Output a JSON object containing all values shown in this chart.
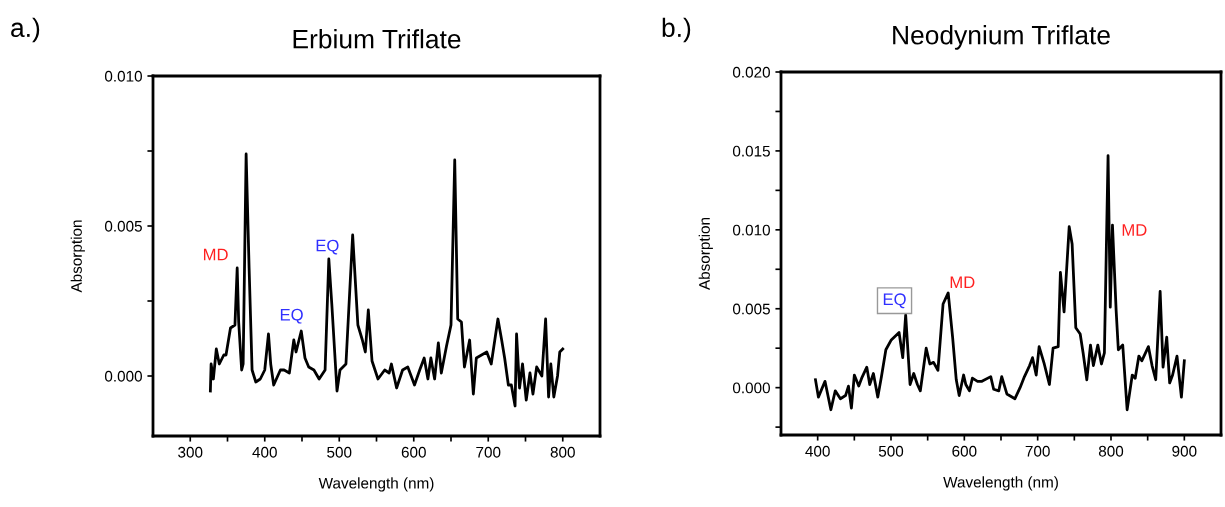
{
  "chart_data": [
    {
      "type": "line",
      "title": "Erbium Triflate",
      "xlabel": "Wavelength (nm)",
      "ylabel": "Absorption",
      "annotations": [
        "a.)",
        "MD",
        "EQ",
        "EQ"
      ],
      "xlim": [
        250,
        850
      ],
      "xticks": [
        300,
        {
          "value": 350,
          "label": null
        },
        400,
        {
          "value": 450,
          "label": null
        },
        500,
        {
          "value": 550,
          "label": null
        },
        600,
        {
          "value": 650,
          "label": null
        },
        700,
        {
          "value": 750,
          "label": null
        },
        800
      ],
      "ylim": [
        -0.002,
        0.01
      ],
      "yticks": [
        {
          "value": 0,
          "label": "0.000"
        },
        {
          "value": 0.0025,
          "label": null
        },
        {
          "value": 0.005,
          "label": "0.005"
        },
        {
          "value": 0.0075,
          "label": null
        },
        {
          "value": 0.01,
          "label": "0.010"
        }
      ],
      "grid": false,
      "legend": false,
      "marker": "none",
      "line_style": "solid",
      "series": [
        {
          "color": "#000000",
          "x": [
            327,
            328,
            331,
            335,
            339,
            345,
            348,
            354,
            360,
            363,
            365,
            369,
            371,
            375,
            379,
            383,
            388,
            394,
            400,
            405,
            408,
            412,
            421,
            426,
            433,
            439,
            442,
            449,
            454,
            459,
            466,
            473,
            481,
            486,
            490,
            497,
            501,
            509,
            518,
            525,
            531,
            535,
            539,
            544,
            552,
            561,
            567,
            570,
            577,
            585,
            592,
            601,
            608,
            614,
            619,
            623,
            628,
            633,
            637,
            644,
            650,
            655,
            659,
            664,
            668,
            675,
            680,
            684,
            691,
            698,
            704,
            713,
            718,
            722,
            727,
            731,
            736,
            738,
            742,
            746,
            751,
            756,
            760,
            765,
            772,
            777,
            781,
            784,
            788,
            793,
            796,
            800
          ],
          "values": [
            -0.0005,
            0.0004,
            -0.0001,
            0.0009,
            0.0004,
            0.0007,
            0.0007,
            0.0016,
            0.0017,
            0.0036,
            0.0018,
            0.0002,
            0.0004,
            0.0074,
            0.0036,
            0.0002,
            -0.0002,
            -0.0001,
            0.0002,
            0.0014,
            0.0004,
            -0.0003,
            0.0002,
            0.0002,
            0.0001,
            0.0012,
            0.0008,
            0.0015,
            0.0006,
            0.0003,
            0.0002,
            -0.0001,
            0.0002,
            0.0039,
            0.0024,
            -0.0005,
            0.0002,
            0.0004,
            0.0047,
            0.0017,
            0.0012,
            0.0008,
            0.0022,
            0.0005,
            -0.0001,
            0.0002,
            0.0001,
            0.0004,
            -0.0004,
            0.0002,
            0.0003,
            -0.0003,
            0.0002,
            0.0006,
            -0.0001,
            0.0006,
            -0.0001,
            0.0011,
            0.0001,
            0.001,
            0.0017,
            0.0072,
            0.0019,
            0.0018,
            0.0003,
            0.0012,
            -0.0006,
            0.0006,
            0.0007,
            0.0008,
            0.0004,
            0.0019,
            0.0012,
            0.0006,
            -0.0003,
            -0.0003,
            -0.001,
            0.0014,
            -0.0004,
            0.0004,
            -0.0008,
            0.0001,
            -0.0006,
            0.0003,
            0.0,
            0.0019,
            -0.0007,
            0.0004,
            -0.0007,
            0.0,
            0.0008,
            0.0009
          ]
        }
      ]
    },
    {
      "type": "line",
      "title": "Neodynium Triflate",
      "xlabel": "Wavelength (nm)",
      "ylabel": "Absorption",
      "annotations": [
        "b.)",
        "EQ",
        "MD",
        "MD"
      ],
      "xlim": [
        350,
        950
      ],
      "xticks": [
        400,
        {
          "value": 450,
          "label": null
        },
        500,
        {
          "value": 550,
          "label": null
        },
        600,
        {
          "value": 650,
          "label": null
        },
        700,
        {
          "value": 750,
          "label": null
        },
        800,
        {
          "value": 850,
          "label": null
        },
        900
      ],
      "ylim": [
        -0.003,
        0.02
      ],
      "yticks": [
        {
          "value": -0.0025,
          "label": null
        },
        {
          "value": 0,
          "label": "0.000"
        },
        {
          "value": 0.0025,
          "label": null
        },
        {
          "value": 0.005,
          "label": "0.005"
        },
        {
          "value": 0.0075,
          "label": null
        },
        {
          "value": 0.01,
          "label": "0.010"
        },
        {
          "value": 0.0125,
          "label": null
        },
        {
          "value": 0.015,
          "label": "0.015"
        },
        {
          "value": 0.0175,
          "label": null
        },
        {
          "value": 0.02,
          "label": "0.020"
        }
      ],
      "grid": false,
      "legend": false,
      "marker": "none",
      "line_style": "solid",
      "series": [
        {
          "color": "#000000",
          "x": [
            397,
            401,
            410,
            418,
            424,
            431,
            438,
            442,
            446,
            450,
            456,
            460,
            467,
            471,
            476,
            482,
            487,
            493,
            500,
            511,
            516,
            520,
            526,
            531,
            536,
            540,
            548,
            553,
            558,
            564,
            571,
            578,
            584,
            589,
            593,
            599,
            602,
            607,
            611,
            618,
            624,
            636,
            640,
            647,
            651,
            658,
            669,
            676,
            682,
            689,
            693,
            698,
            702,
            709,
            716,
            721,
            728,
            731,
            736,
            743,
            747,
            752,
            758,
            762,
            767,
            772,
            776,
            782,
            787,
            791,
            796,
            799,
            802,
            807,
            810,
            816,
            822,
            829,
            833,
            838,
            842,
            851,
            856,
            861,
            867,
            871,
            876,
            880,
            884,
            890,
            896,
            900
          ],
          "values": [
            0.0005,
            -0.0006,
            0.0004,
            -0.0014,
            -0.0002,
            -0.0007,
            -0.0005,
            0.0001,
            -0.0013,
            0.0008,
            0.0001,
            0.0006,
            0.0013,
            0.0002,
            0.0009,
            -0.0006,
            0.0007,
            0.0024,
            0.003,
            0.0035,
            0.0019,
            0.0046,
            0.0002,
            0.0009,
            0.0002,
            -0.0002,
            0.0025,
            0.0015,
            0.0016,
            0.0011,
            0.0053,
            0.006,
            0.0032,
            0.0005,
            -0.0005,
            0.0008,
            0.0002,
            -0.0002,
            0.0006,
            0.0004,
            0.0004,
            0.0007,
            -0.0001,
            -0.0002,
            0.0007,
            -0.0004,
            -0.0007,
            0.0,
            0.0007,
            0.0014,
            0.0019,
            0.0008,
            0.0026,
            0.0015,
            0.0002,
            0.0025,
            0.0026,
            0.0073,
            0.0048,
            0.0102,
            0.0091,
            0.0038,
            0.0034,
            0.0022,
            0.0005,
            0.0027,
            0.0014,
            0.0027,
            0.0015,
            0.0022,
            0.0147,
            0.0051,
            0.0103,
            0.0049,
            0.0024,
            0.0027,
            -0.0014,
            0.0008,
            0.0006,
            0.002,
            0.0017,
            0.0026,
            0.0014,
            0.0005,
            0.0061,
            0.0013,
            0.0032,
            0.0003,
            0.0008,
            0.002,
            -0.0006,
            0.0017
          ]
        }
      ]
    }
  ]
}
